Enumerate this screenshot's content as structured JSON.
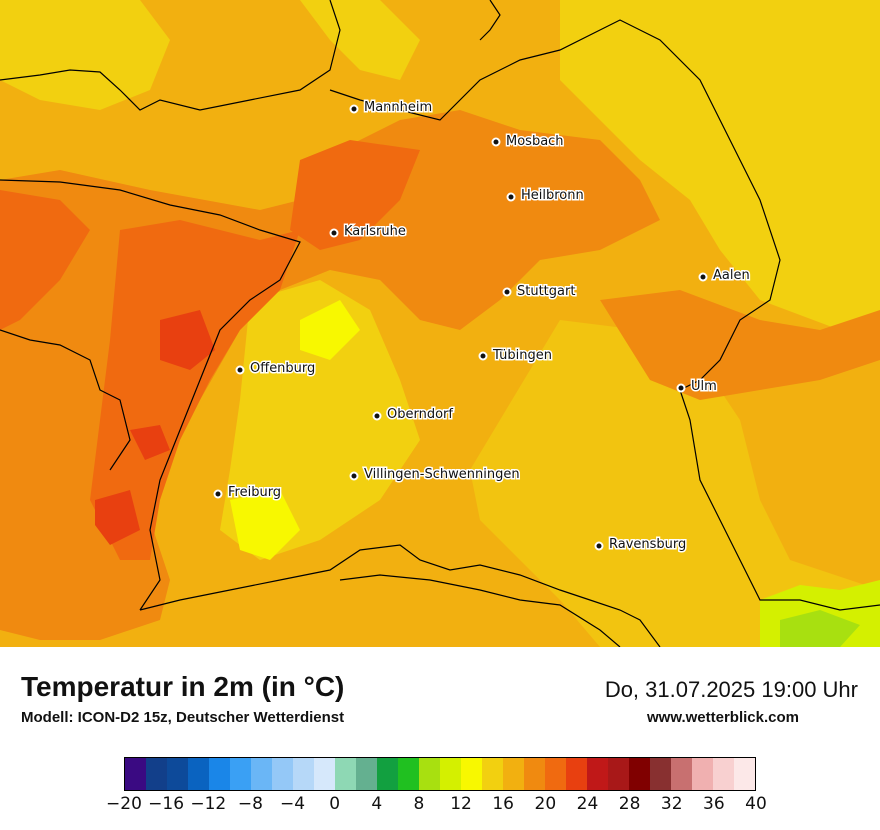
{
  "map": {
    "title": "Temperatur in 2m (in °C)",
    "model": "Modell: ICON-D2 15z, Deutscher Wetterdienst",
    "valid_time": "Do, 31.07.2025 19:00 Uhr",
    "website": "www.wetterblick.com"
  },
  "cities": [
    {
      "name": "Mannheim"
    },
    {
      "name": "Mosbach"
    },
    {
      "name": "Heilbronn"
    },
    {
      "name": "Karlsruhe"
    },
    {
      "name": "Aalen"
    },
    {
      "name": "Stuttgart"
    },
    {
      "name": "Tübingen"
    },
    {
      "name": "Offenburg"
    },
    {
      "name": "Ulm"
    },
    {
      "name": "Oberndorf"
    },
    {
      "name": "Villingen-Schwenningen"
    },
    {
      "name": "Freiburg"
    },
    {
      "name": "Ravensburg"
    }
  ],
  "legend": {
    "unit": "°C",
    "ticks": [
      "−20",
      "−16",
      "−12",
      "−8",
      "−4",
      "0",
      "4",
      "8",
      "12",
      "16",
      "20",
      "24",
      "28",
      "32",
      "36",
      "40"
    ],
    "colors": [
      "#3a0a82",
      "#123f8a",
      "#0d4a9a",
      "#0a63c0",
      "#1a86e8",
      "#3aa0f4",
      "#6ab6f6",
      "#94c8f7",
      "#b6d8f8",
      "#d6e8fb",
      "#8ed8b4",
      "#64b090",
      "#12a040",
      "#20c020",
      "#a8e010",
      "#d4f000",
      "#f8f800",
      "#f2d010",
      "#f2b010",
      "#f08a10",
      "#f06a10",
      "#e84010",
      "#c01818",
      "#a81818",
      "#800000",
      "#883030",
      "#c87070",
      "#f0b0b0",
      "#f8d0d0",
      "#fce8e8"
    ]
  }
}
